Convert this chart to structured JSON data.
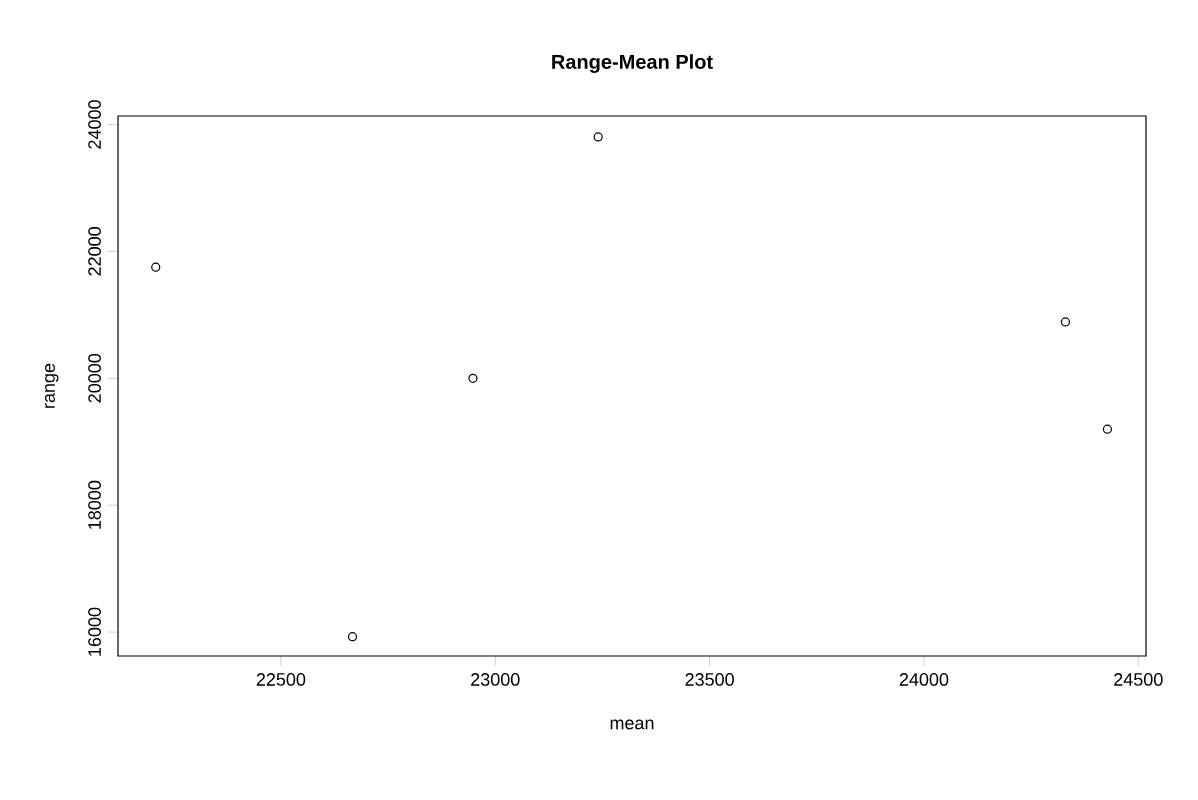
{
  "chart_data": {
    "type": "scatter",
    "title": "Range-Mean Plot",
    "xlabel": "mean",
    "ylabel": "range",
    "x": [
      22208,
      22667,
      22948,
      23240,
      24330,
      24428
    ],
    "values": [
      21751,
      15927,
      20000,
      23805,
      20888,
      19198
    ],
    "color": "#000000",
    "marker": "circle",
    "xlim": [
      22120,
      24518
    ],
    "ylim": [
      15623,
      24134
    ],
    "xticks": [
      22500,
      23000,
      23500,
      24000,
      24500
    ],
    "yticks": [
      16000,
      18000,
      20000,
      22000,
      24000
    ],
    "grid": false
  }
}
